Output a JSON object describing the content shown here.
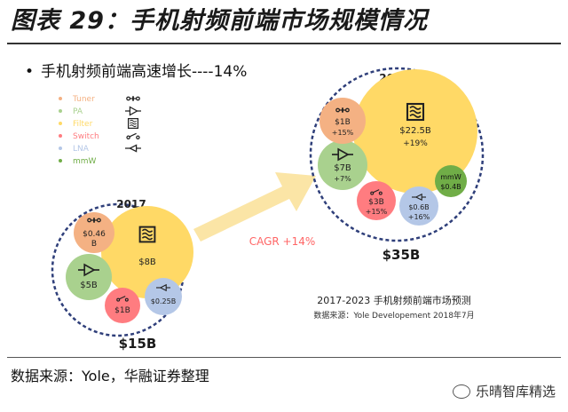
{
  "page": {
    "figure_title": "图表 29：手机射频前端市场规模情况",
    "subtitle": "手机射频前端高速增长----14%",
    "bullet": "•",
    "source": "数据来源：Yole，华融证券整理",
    "watermark": "乐晴智库精选"
  },
  "colors": {
    "Tuner": "#f4b183",
    "PA": "#a9d18e",
    "Filter": "#ffd966",
    "Switch": "#ff7c80",
    "LNA": "#b4c7e7",
    "mmW": "#70ad47",
    "arrow": "#fbe5a6",
    "cagr_text": "#ff6666",
    "dashed": "#2f3f7a"
  },
  "chart_data": {
    "type": "bubble",
    "title": "2017-2023 手机射频前端市场预测",
    "note": "数据来源：Yole Developement 2018年7月",
    "legend": [
      "Tuner",
      "PA",
      "Filter",
      "Switch",
      "LNA",
      "mmW"
    ],
    "cagr": "CAGR +14%",
    "groups": [
      {
        "year": "2017",
        "total": "$15B",
        "segments": [
          {
            "name": "Tuner",
            "value": 0.46,
            "label": "$0.46 B",
            "growth": ""
          },
          {
            "name": "PA",
            "value": 5,
            "label": "$5B",
            "growth": ""
          },
          {
            "name": "Filter",
            "value": 8,
            "label": "$8B",
            "growth": ""
          },
          {
            "name": "Switch",
            "value": 1,
            "label": "$1B",
            "growth": ""
          },
          {
            "name": "LNA",
            "value": 0.25,
            "label": "$0.25B",
            "growth": ""
          }
        ]
      },
      {
        "year": "2023",
        "total": "$35B",
        "segments": [
          {
            "name": "Tuner",
            "value": 1,
            "label": "$1B",
            "growth": "+15%"
          },
          {
            "name": "PA",
            "value": 7,
            "label": "$7B",
            "growth": "+7%"
          },
          {
            "name": "Filter",
            "value": 22.5,
            "label": "$22.5B",
            "growth": "+19%"
          },
          {
            "name": "Switch",
            "value": 3,
            "label": "$3B",
            "growth": "+15%"
          },
          {
            "name": "LNA",
            "value": 0.6,
            "label": "$0.6B",
            "growth": "+16%"
          },
          {
            "name": "mmW",
            "value": 0.4,
            "label": "mmW $0.4B",
            "growth": ""
          }
        ]
      }
    ]
  }
}
